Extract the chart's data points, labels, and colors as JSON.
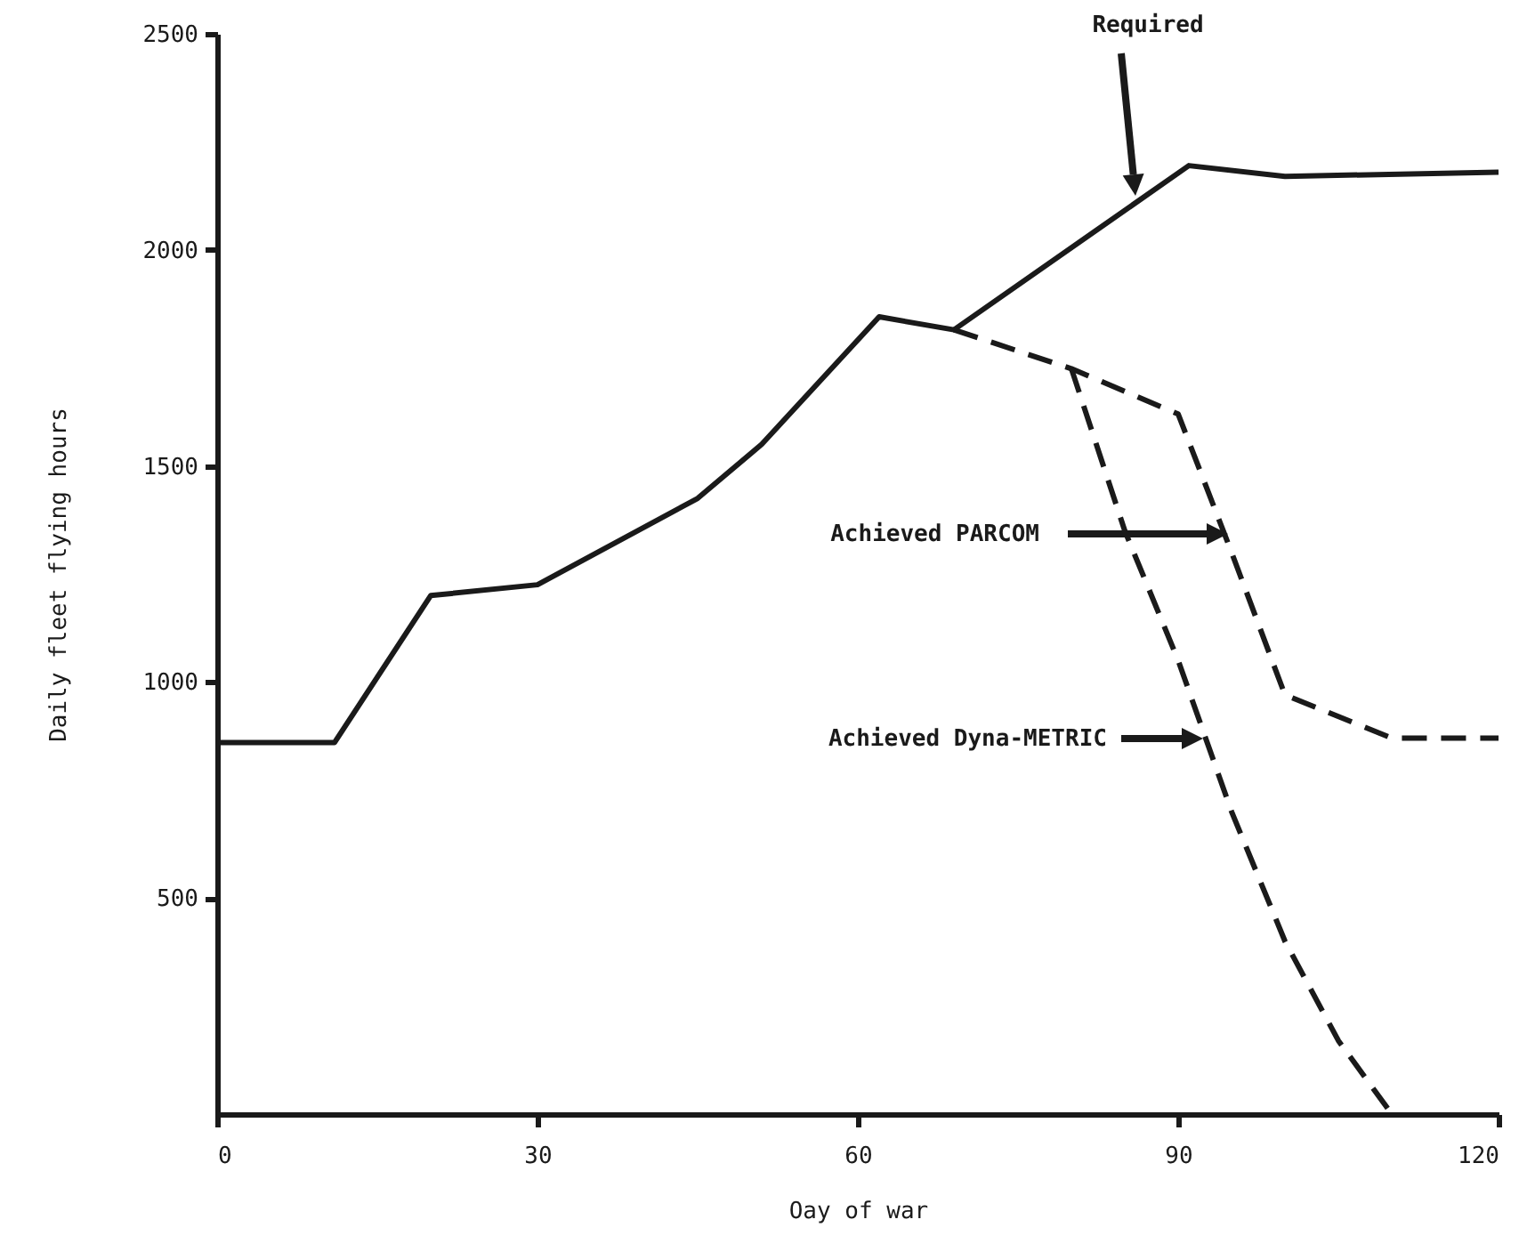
{
  "chart_data": {
    "type": "line",
    "xlabel": "Oay of war",
    "ylabel": "Daily fleet flying hours",
    "xlim": [
      0,
      120
    ],
    "xticks": [
      0,
      30,
      60,
      90,
      120
    ],
    "ylim": [
      0,
      2500
    ],
    "yticks": [
      500,
      1000,
      1500,
      2000,
      2500
    ],
    "grid": false,
    "marker": "none",
    "series": [
      {
        "color": "#1a1a1a",
        "line_style": "solid",
        "x": [
          0,
          11,
          20,
          30,
          45,
          51,
          62,
          69,
          91,
          100,
          120
        ],
        "values": [
          860,
          860,
          1200,
          1225,
          1425,
          1550,
          1845,
          1815,
          2195,
          2170,
          2180
        ]
      },
      {
        "color": "#1a1a1a",
        "line_style": "dashed",
        "x": [
          69,
          80,
          90,
          95,
          100,
          110,
          120
        ],
        "values": [
          1815,
          1725,
          1620,
          1300,
          970,
          870,
          870
        ]
      },
      {
        "color": "#1a1a1a",
        "line_style": "dashed",
        "x": [
          80,
          85,
          90,
          95,
          100,
          105,
          110
        ],
        "values": [
          1725,
          1350,
          1050,
          700,
          400,
          170,
          0
        ]
      }
    ],
    "annotations": [
      "Required",
      "Achieved PARCOM",
      "Achieved Dyna-METRIC"
    ]
  }
}
